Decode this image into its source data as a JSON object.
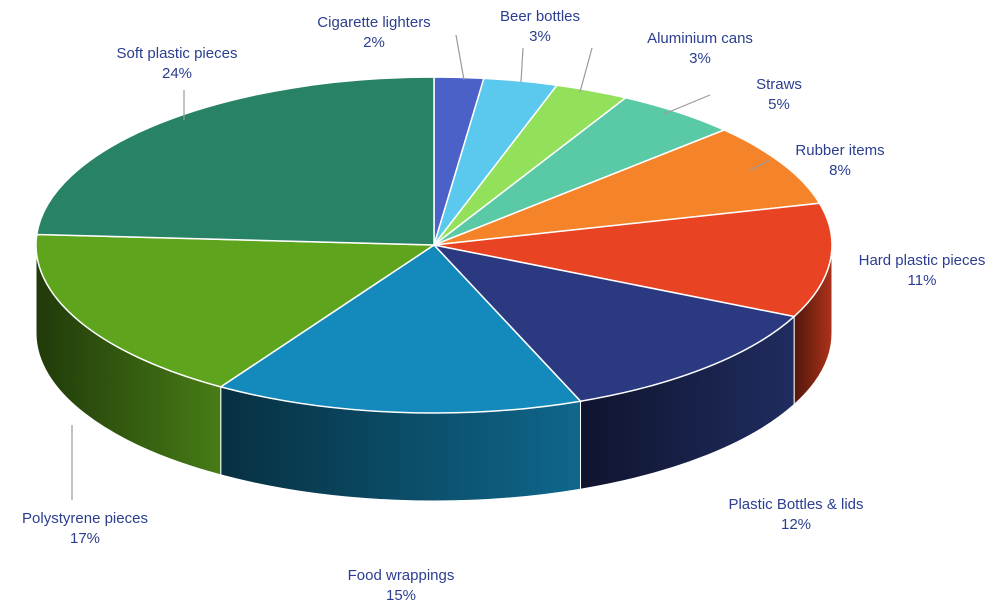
{
  "chart_data": {
    "type": "pie",
    "title": "",
    "slices": [
      {
        "label": "Cigarette lighters",
        "value": 2,
        "value_label": "2%",
        "color": "#4b61c8"
      },
      {
        "label": "Beer bottles",
        "value": 3,
        "value_label": "3%",
        "color": "#5bc8ee"
      },
      {
        "label": "Aluminium cans",
        "value": 3,
        "value_label": "3%",
        "color": "#93e05a"
      },
      {
        "label": "Straws",
        "value": 5,
        "value_label": "5%",
        "color": "#59c9a6"
      },
      {
        "label": "Rubber items",
        "value": 8,
        "value_label": "8%",
        "color": "#f5832a"
      },
      {
        "label": "Hard plastic pieces",
        "value": 11,
        "value_label": "11%",
        "color": "#e84322"
      },
      {
        "label": "Plastic Bottles & lids",
        "value": 12,
        "value_label": "12%",
        "color": "#2b3a80"
      },
      {
        "label": "Food wrappings",
        "value": 15,
        "value_label": "15%",
        "color": "#1489bb"
      },
      {
        "label": "Polystyrene pieces",
        "value": 17,
        "value_label": "17%",
        "color": "#5ea51d"
      },
      {
        "label": "Soft plastic pieces",
        "value": 24,
        "value_label": "24%",
        "color": "#278266"
      }
    ],
    "style": "3d",
    "legend": "none",
    "data_labels": "outside with leader lines"
  }
}
